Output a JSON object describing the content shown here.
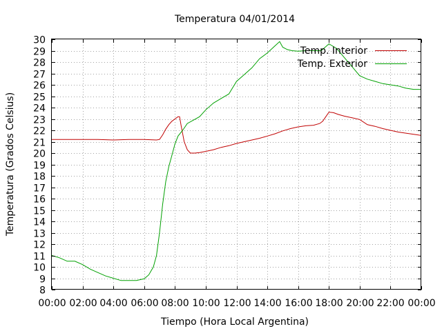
{
  "chart_data": {
    "type": "line",
    "title": "Temperatura 04/01/2014",
    "xlabel": "Tiempo (Hora Local Argentina)",
    "ylabel": "Temperatura (Grados Celsius)",
    "xlim": [
      0,
      24
    ],
    "ylim": [
      8,
      30
    ],
    "x_ticks": [
      "00:00",
      "02:00",
      "04:00",
      "06:00",
      "08:00",
      "10:00",
      "12:00",
      "14:00",
      "16:00",
      "18:00",
      "20:00",
      "22:00",
      "00:00"
    ],
    "y_ticks": [
      "8",
      "9",
      "10",
      "11",
      "12",
      "13",
      "14",
      "15",
      "16",
      "17",
      "18",
      "19",
      "20",
      "21",
      "22",
      "23",
      "24",
      "25",
      "26",
      "27",
      "28",
      "29",
      "30"
    ],
    "grid": true,
    "legend_position": "top-right",
    "series": [
      {
        "name": "Temp. Interior",
        "color": "#c00000",
        "x": [
          0,
          1,
          2,
          3,
          4,
          5,
          6,
          6.8,
          7.0,
          7.2,
          7.4,
          7.6,
          7.8,
          8.0,
          8.2,
          8.3,
          8.4,
          8.6,
          8.8,
          9.0,
          9.3,
          9.6,
          10,
          10.5,
          11,
          11.5,
          12,
          12.5,
          13,
          13.5,
          14,
          14.5,
          15,
          15.5,
          16,
          16.5,
          17,
          17.4,
          17.6,
          17.8,
          18.0,
          18.3,
          18.6,
          19,
          19.5,
          20,
          20.5,
          21,
          21.5,
          22,
          22.5,
          23,
          23.5,
          24
        ],
        "y": [
          21.2,
          21.2,
          21.2,
          21.2,
          21.15,
          21.2,
          21.2,
          21.15,
          21.2,
          21.6,
          22.1,
          22.5,
          22.8,
          23.0,
          23.2,
          23.2,
          22.4,
          21.0,
          20.3,
          20.0,
          20.0,
          20.05,
          20.15,
          20.3,
          20.5,
          20.65,
          20.85,
          21.0,
          21.15,
          21.3,
          21.5,
          21.7,
          21.95,
          22.15,
          22.3,
          22.4,
          22.45,
          22.6,
          22.8,
          23.2,
          23.6,
          23.55,
          23.4,
          23.25,
          23.1,
          22.95,
          22.5,
          22.35,
          22.15,
          22.0,
          21.85,
          21.75,
          21.65,
          21.55
        ]
      },
      {
        "name": "Temp. Exterior",
        "color": "#00a000",
        "x": [
          0,
          0.5,
          1,
          1.5,
          2,
          2.5,
          3,
          3.5,
          4,
          4.5,
          5,
          5.5,
          6,
          6.3,
          6.6,
          6.8,
          7.0,
          7.2,
          7.4,
          7.6,
          7.8,
          8.0,
          8.2,
          8.5,
          8.8,
          9.2,
          9.6,
          10,
          10.5,
          11,
          11.5,
          12,
          12.5,
          13,
          13.5,
          14,
          14.4,
          14.8,
          15.0,
          15.3,
          15.6,
          16,
          16.5,
          17,
          17.5,
          18,
          18.5,
          19,
          19.5,
          20,
          20.5,
          21,
          21.5,
          22,
          22.5,
          23,
          23.5,
          24
        ],
        "y": [
          11.0,
          10.8,
          10.5,
          10.5,
          10.2,
          9.8,
          9.5,
          9.2,
          9.0,
          8.8,
          8.8,
          8.8,
          8.95,
          9.3,
          10.0,
          11.0,
          13.0,
          15.5,
          17.5,
          18.8,
          19.8,
          20.8,
          21.5,
          22.0,
          22.6,
          22.9,
          23.2,
          23.8,
          24.4,
          24.8,
          25.2,
          26.3,
          26.9,
          27.5,
          28.3,
          28.8,
          29.3,
          29.8,
          29.3,
          29.1,
          29.0,
          28.95,
          29.0,
          29.0,
          29.0,
          29.6,
          29.2,
          28.4,
          27.6,
          26.8,
          26.5,
          26.3,
          26.1,
          26.0,
          25.9,
          25.7,
          25.6,
          25.6
        ]
      }
    ]
  }
}
